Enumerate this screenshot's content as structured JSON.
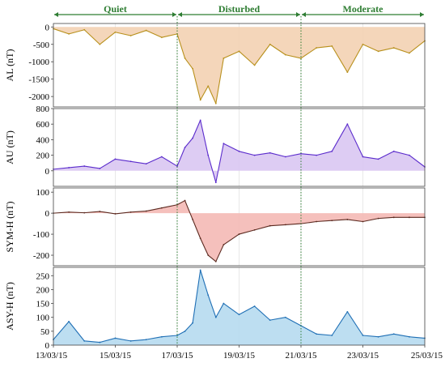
{
  "chart_data": {
    "type": "line",
    "phases": [
      {
        "label": "Quiet",
        "start": "13/03/15",
        "end": "17/03/15"
      },
      {
        "label": "Disturbed",
        "start": "17/03/15",
        "end": "21/03/15"
      },
      {
        "label": "Moderate",
        "start": "21/03/15",
        "end": "25/03/15"
      }
    ],
    "x_ticks": [
      "13/03/15",
      "15/03/15",
      "17/03/15",
      "19/03/15",
      "21/03/15",
      "23/03/15",
      "25/03/15"
    ],
    "phase_boundaries": [
      "17/03/15",
      "21/03/15"
    ],
    "grid": true,
    "panels": [
      {
        "ylabel": "AL (nT)",
        "ylim": [
          -2300,
          100
        ],
        "yticks": [
          0,
          -500,
          -1000,
          -1500,
          -2000
        ],
        "baseline": 0,
        "color": "#b8901c",
        "fill": "#f3d2b3",
        "x": [
          "13/03/15",
          "13/03/15 12h",
          "14/03/15",
          "14/03/15 12h",
          "15/03/15",
          "15/03/15 12h",
          "16/03/15",
          "16/03/15 12h",
          "17/03/15",
          "17/03/15 06h",
          "17/03/15 12h",
          "17/03/15 18h",
          "18/03/15",
          "18/03/15 06h",
          "18/03/15 12h",
          "19/03/15",
          "19/03/15 12h",
          "20/03/15",
          "20/03/15 12h",
          "21/03/15",
          "21/03/15 12h",
          "22/03/15",
          "22/03/15 12h",
          "23/03/15",
          "23/03/15 12h",
          "24/03/15",
          "24/03/15 12h",
          "25/03/15"
        ],
        "values": [
          -50,
          -200,
          -80,
          -500,
          -150,
          -250,
          -100,
          -300,
          -200,
          -900,
          -1200,
          -2100,
          -1700,
          -2200,
          -900,
          -700,
          -1100,
          -500,
          -800,
          -900,
          -600,
          -550,
          -1300,
          -500,
          -700,
          -600,
          -750,
          -400
        ]
      },
      {
        "ylabel": "AU (nT)",
        "ylim": [
          -200,
          800
        ],
        "yticks": [
          0,
          200,
          400,
          600,
          800
        ],
        "baseline": 0,
        "color": "#5b2ccc",
        "fill": "#d9c6f2",
        "x": [
          "13/03/15",
          "13/03/15 12h",
          "14/03/15",
          "14/03/15 12h",
          "15/03/15",
          "15/03/15 12h",
          "16/03/15",
          "16/03/15 12h",
          "17/03/15",
          "17/03/15 06h",
          "17/03/15 12h",
          "17/03/15 18h",
          "18/03/15",
          "18/03/15 06h",
          "18/03/15 12h",
          "19/03/15",
          "19/03/15 12h",
          "20/03/15",
          "20/03/15 12h",
          "21/03/15",
          "21/03/15 12h",
          "22/03/15",
          "22/03/15 12h",
          "23/03/15",
          "23/03/15 12h",
          "24/03/15",
          "24/03/15 12h",
          "25/03/15"
        ],
        "values": [
          20,
          40,
          60,
          30,
          150,
          120,
          90,
          180,
          60,
          300,
          420,
          650,
          200,
          -150,
          350,
          250,
          200,
          230,
          180,
          220,
          200,
          250,
          600,
          180,
          150,
          250,
          200,
          50
        ]
      },
      {
        "ylabel": "SYM-H (nT)",
        "ylim": [
          -250,
          120
        ],
        "yticks": [
          100,
          0,
          -100,
          -200
        ],
        "baseline": 0,
        "color": "#5c2a20",
        "fill": "#f4b9b5",
        "x": [
          "13/03/15",
          "13/03/15 12h",
          "14/03/15",
          "14/03/15 12h",
          "15/03/15",
          "15/03/15 12h",
          "16/03/15",
          "16/03/15 12h",
          "17/03/15",
          "17/03/15 06h",
          "17/03/15 12h",
          "17/03/15 18h",
          "18/03/15",
          "18/03/15 06h",
          "18/03/15 12h",
          "19/03/15",
          "19/03/15 12h",
          "20/03/15",
          "20/03/15 12h",
          "21/03/15",
          "21/03/15 12h",
          "22/03/15",
          "22/03/15 12h",
          "23/03/15",
          "23/03/15 12h",
          "24/03/15",
          "24/03/15 12h",
          "25/03/15"
        ],
        "values": [
          0,
          5,
          2,
          8,
          -3,
          5,
          10,
          25,
          40,
          60,
          -30,
          -120,
          -200,
          -230,
          -150,
          -100,
          -80,
          -60,
          -55,
          -50,
          -40,
          -35,
          -30,
          -40,
          -25,
          -20,
          -20,
          -20
        ]
      },
      {
        "ylabel": "ASY-H (nT)",
        "ylim": [
          0,
          280
        ],
        "yticks": [
          0,
          50,
          100,
          150,
          200,
          250
        ],
        "baseline": 0,
        "color": "#1f6fb5",
        "fill": "#b6daf0",
        "x": [
          "13/03/15",
          "13/03/15 12h",
          "14/03/15",
          "14/03/15 12h",
          "15/03/15",
          "15/03/15 12h",
          "16/03/15",
          "16/03/15 12h",
          "17/03/15",
          "17/03/15 06h",
          "17/03/15 12h",
          "17/03/15 18h",
          "18/03/15",
          "18/03/15 06h",
          "18/03/15 12h",
          "19/03/15",
          "19/03/15 12h",
          "20/03/15",
          "20/03/15 12h",
          "21/03/15",
          "21/03/15 12h",
          "22/03/15",
          "22/03/15 12h",
          "23/03/15",
          "23/03/15 12h",
          "24/03/15",
          "24/03/15 12h",
          "25/03/15"
        ],
        "values": [
          20,
          85,
          15,
          10,
          25,
          15,
          20,
          30,
          35,
          50,
          80,
          270,
          180,
          100,
          150,
          110,
          140,
          90,
          100,
          70,
          40,
          35,
          120,
          35,
          30,
          40,
          30,
          25
        ]
      }
    ]
  }
}
